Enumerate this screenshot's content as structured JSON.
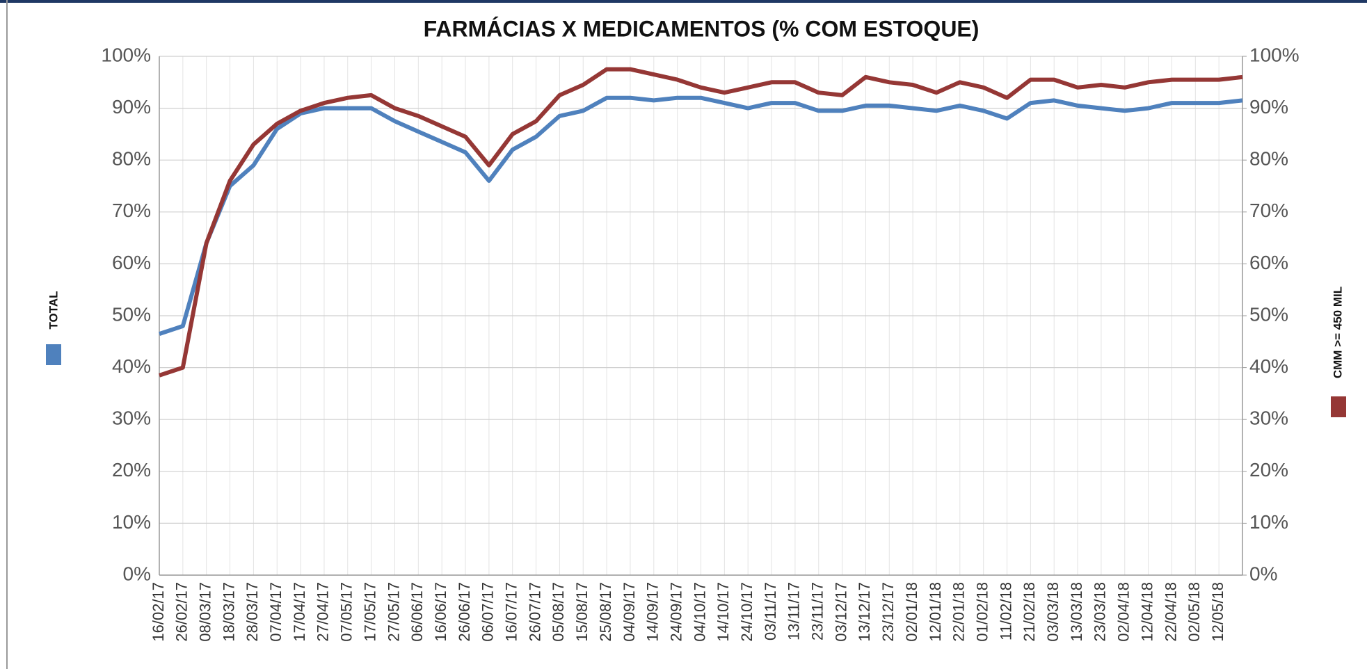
{
  "chart_data": {
    "type": "line",
    "title": "FARMÁCIAS X MEDICAMENTOS (% COM ESTOQUE)",
    "categories": [
      "16/02/17",
      "26/02/17",
      "08/03/17",
      "18/03/17",
      "28/03/17",
      "07/04/17",
      "17/04/17",
      "27/04/17",
      "07/05/17",
      "17/05/17",
      "27/05/17",
      "06/06/17",
      "16/06/17",
      "26/06/17",
      "06/07/17",
      "16/07/17",
      "26/07/17",
      "05/08/17",
      "15/08/17",
      "25/08/17",
      "04/09/17",
      "14/09/17",
      "24/09/17",
      "04/10/17",
      "14/10/17",
      "24/10/17",
      "03/11/17",
      "13/11/17",
      "23/11/17",
      "03/12/17",
      "13/12/17",
      "23/12/17",
      "02/01/18",
      "12/01/18",
      "22/01/18",
      "01/02/18",
      "11/02/18",
      "21/02/18",
      "03/03/18",
      "13/03/18",
      "23/03/18",
      "02/04/18",
      "12/04/18",
      "22/04/18",
      "02/05/18",
      "12/05/18",
      null
    ],
    "series": [
      {
        "name": "TOTAL",
        "color": "#4f81bd",
        "values": [
          46.5,
          48,
          64,
          75,
          79,
          86,
          89,
          90,
          90,
          90,
          87.5,
          85.5,
          83.5,
          81.5,
          76,
          82,
          84.5,
          88.5,
          89.5,
          92,
          92,
          91.5,
          92,
          92,
          91,
          90,
          91,
          91,
          89.5,
          89.5,
          90.5,
          90.5,
          90,
          89.5,
          90.5,
          89.5,
          88,
          91,
          91.5,
          90.5,
          90,
          89.5,
          90,
          91,
          91,
          91,
          91.5
        ]
      },
      {
        "name": "CMM >= 450 MIL",
        "color": "#953735",
        "axis": "y2",
        "values": [
          38.5,
          40,
          64,
          76,
          83,
          87,
          89.5,
          91,
          92,
          92.5,
          90,
          88.5,
          86.5,
          84.5,
          79,
          85,
          87.5,
          92.5,
          94.5,
          97.5,
          97.5,
          96.5,
          95.5,
          94,
          93,
          94,
          95,
          95,
          93,
          92.5,
          96,
          95,
          94.5,
          93,
          95,
          94,
          92,
          95.5,
          95.5,
          94,
          94.5,
          94,
          95,
          95.5,
          95.5,
          95.5,
          96
        ]
      }
    ],
    "ylim": [
      0,
      100
    ],
    "yticks": [
      {
        "value": 0,
        "label": "0%"
      },
      {
        "value": 10,
        "label": "10%"
      },
      {
        "value": 20,
        "label": "20%"
      },
      {
        "value": 30,
        "label": "30%"
      },
      {
        "value": 40,
        "label": "40%"
      },
      {
        "value": 50,
        "label": "50%"
      },
      {
        "value": 60,
        "label": "60%"
      },
      {
        "value": 70,
        "label": "70%"
      },
      {
        "value": 80,
        "label": "80%"
      },
      {
        "value": 90,
        "label": "90%"
      },
      {
        "value": 100,
        "label": "100%"
      }
    ],
    "y2lim": [
      0,
      100
    ],
    "y2ticks": [
      {
        "value": 0,
        "label": "0%"
      },
      {
        "value": 10,
        "label": "10%"
      },
      {
        "value": 20,
        "label": "20%"
      },
      {
        "value": 30,
        "label": "30%"
      },
      {
        "value": 40,
        "label": "40%"
      },
      {
        "value": 50,
        "label": "50%"
      },
      {
        "value": 60,
        "label": "60%"
      },
      {
        "value": 70,
        "label": "70%"
      },
      {
        "value": 80,
        "label": "80%"
      },
      {
        "value": 90,
        "label": "90%"
      },
      {
        "value": 100,
        "label": "100%"
      }
    ],
    "grid": true
  }
}
